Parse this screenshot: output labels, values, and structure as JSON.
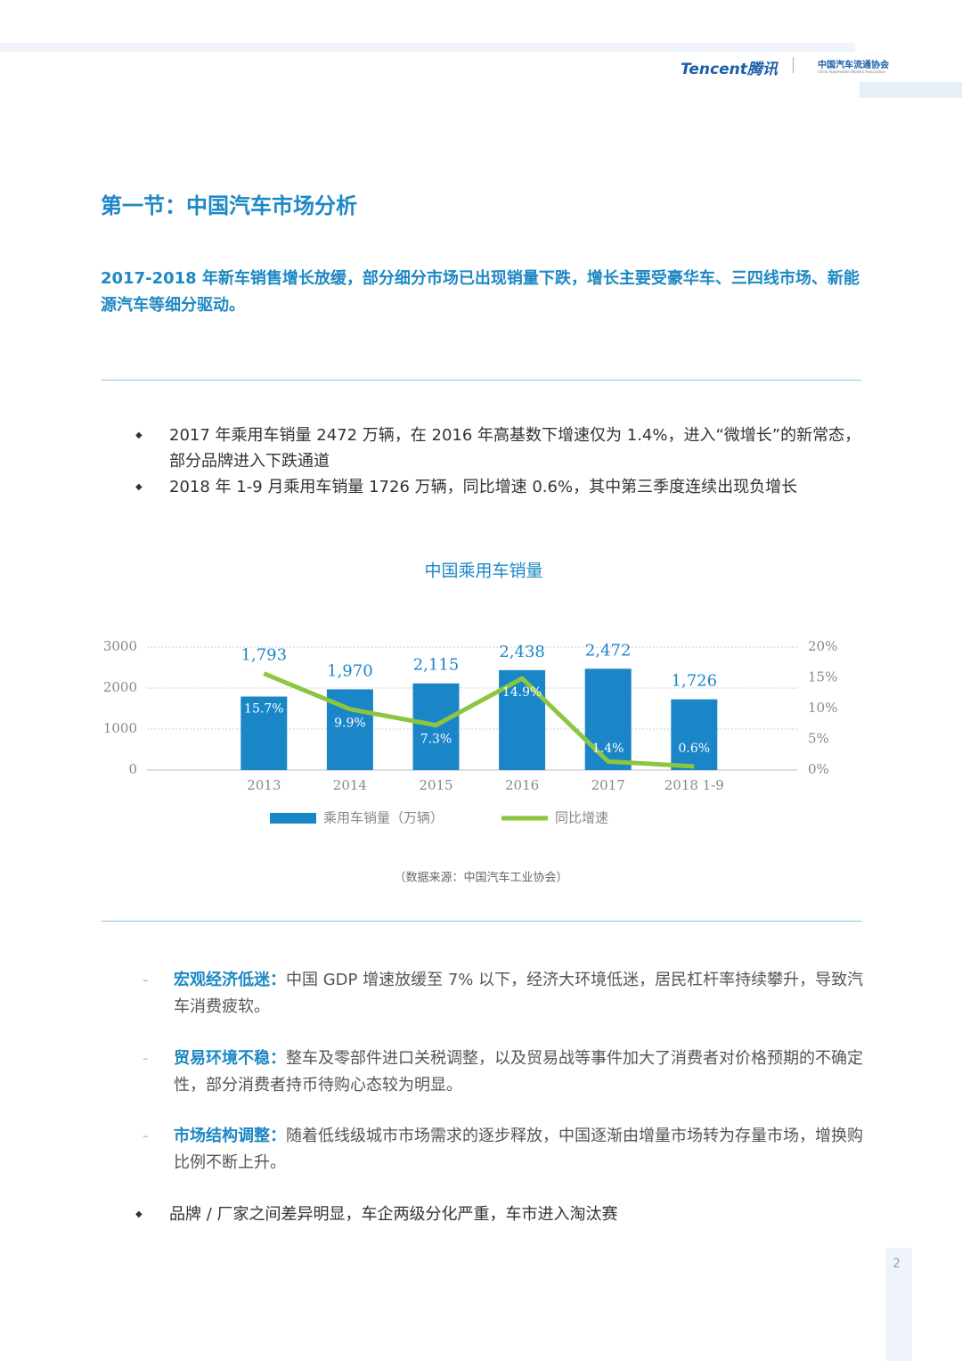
{
  "header": {
    "brand": "Tencent腾讯",
    "association": "中国汽车流通协会",
    "association_en": "China Automobile Dealers Association"
  },
  "section_title": "第一节：中国汽车市场分析",
  "summary": "2017-2018 年新车销售增长放缓，部分细分市场已出现销量下跌，增长主要受豪华车、三四线市场、新能源汽车等细分驱动。",
  "bullets": [
    "2017 年乘用车销量 2472 万辆，在 2016 年高基数下增速仅为 1.4%，进入“微增长”的新常态，部分品牌进入下跌通道",
    "2018 年 1-9 月乘用车销量 1726 万辆，同比增速 0.6%，其中第三季度连续出现负增长"
  ],
  "chart_data": {
    "type": "bar",
    "title": "中国乘用车销量",
    "categories": [
      "2013",
      "2014",
      "2015",
      "2016",
      "2017",
      "2018 1-9"
    ],
    "series": [
      {
        "name": "乘用车销量（万辆）",
        "type": "bar",
        "color": "#1a86c8",
        "values": [
          1793,
          1970,
          2115,
          2438,
          2472,
          1726
        ],
        "value_labels": [
          "1,793",
          "1,970",
          "2,115",
          "2,438",
          "2,472",
          "1,726"
        ]
      },
      {
        "name": "同比增速",
        "type": "line",
        "axis": "y2",
        "color": "#8cc63f",
        "values": [
          15.7,
          9.9,
          7.3,
          14.9,
          1.4,
          0.6
        ],
        "value_labels": [
          "15.7%",
          "9.9%",
          "7.3%",
          "14.9%",
          "1.4%",
          "0.6%"
        ]
      }
    ],
    "ylim": [
      0,
      3000
    ],
    "yticks": [
      0,
      1000,
      2000,
      3000
    ],
    "y2lim": [
      0,
      20
    ],
    "y2ticks": [
      {
        "value": 0,
        "label": "0%"
      },
      {
        "value": 5,
        "label": "5%"
      },
      {
        "value": 10,
        "label": "10%"
      },
      {
        "value": 15,
        "label": "15%"
      },
      {
        "value": 20,
        "label": "20%"
      }
    ],
    "grid": true,
    "legend": "bottom"
  },
  "source": "（数据来源：中国汽车工业协会）",
  "points": [
    {
      "label": "宏观经济低迷：",
      "text": "中国 GDP 增速放缓至 7% 以下，经济大环境低迷，居民杠杆率持续攀升，导致汽车消费疲软。"
    },
    {
      "label": "贸易环境不稳：",
      "text": "整车及零部件进口关税调整，以及贸易战等事件加大了消费者对价格预期的不确定性，部分消费者持币待购心态较为明显。"
    },
    {
      "label": "市场结构调整：",
      "text": "随着低线级城市市场需求的逐步释放，中国逐渐由增量市场转为存量市场，增换购比例不断上升。"
    }
  ],
  "final_bullet": "品牌 / 厂家之间差异明显，车企两级分化严重，车市进入淘汰赛",
  "page_number": "2"
}
